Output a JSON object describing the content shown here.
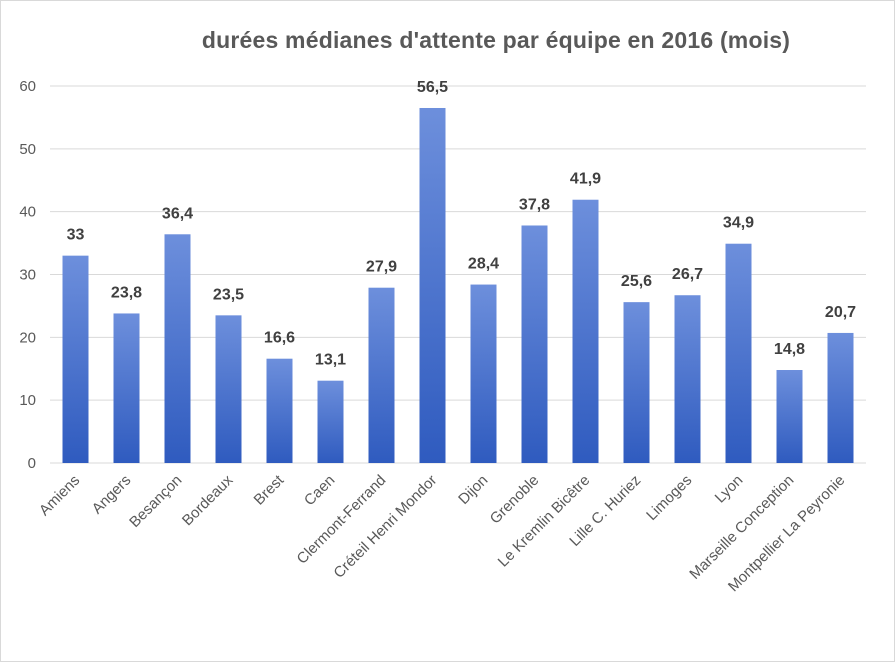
{
  "chart_data": {
    "type": "bar",
    "title": "durées médianes d'attente par équipe en 2016 (mois)",
    "categories": [
      "Amiens",
      "Angers",
      "Besançon",
      "Bordeaux",
      "Brest",
      "Caen",
      "Clermont-Ferrand",
      "Créteil Henri Mondor",
      "Dijon",
      "Grenoble",
      "Le Kremlin Bicêtre",
      "Lille C. Huriez",
      "Limoges",
      "Lyon",
      "Marseille Conception",
      "Montpellier La Peyronie"
    ],
    "values": [
      33,
      23.8,
      36.4,
      23.5,
      16.6,
      13.1,
      27.9,
      56.5,
      28.4,
      37.8,
      41.9,
      25.6,
      26.7,
      34.9,
      14.8,
      20.7
    ],
    "value_labels": [
      "33",
      "23,8",
      "36,4",
      "23,5",
      "16,6",
      "13,1",
      "27,9",
      "56,5",
      "28,4",
      "37,8",
      "41,9",
      "25,6",
      "26,7",
      "34,9",
      "14,8",
      "20,7"
    ],
    "yticks": [
      "0",
      "10",
      "20",
      "30",
      "40",
      "50",
      "60"
    ],
    "ylim": [
      0,
      60
    ],
    "grid": true,
    "colors": {
      "bar_top": "#6d8fdc",
      "bar_bottom": "#2f5bbf",
      "grid": "#d9d9d9",
      "text": "#595959"
    }
  }
}
